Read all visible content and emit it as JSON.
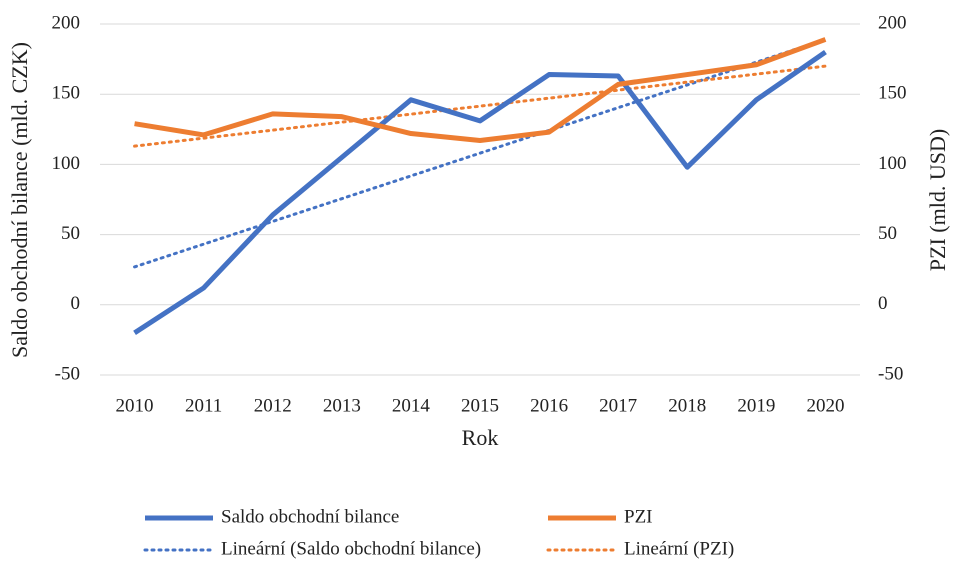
{
  "chart_data": {
    "type": "line",
    "x_label": "Rok",
    "y_label": "Saldo obchodní bilance (mld. CZK)",
    "y2_label": "PZI (mld. USD)",
    "categories": [
      "2010",
      "2011",
      "2012",
      "2013",
      "2014",
      "2015",
      "2016",
      "2017",
      "2018",
      "2019",
      "2020"
    ],
    "ylim": [
      -50,
      200
    ],
    "yticks": [
      -50,
      0,
      50,
      100,
      150,
      200
    ],
    "y2lim": [
      -50,
      200
    ],
    "y2ticks": [
      -50,
      0,
      50,
      100,
      150,
      200
    ],
    "grid": true,
    "legend": "bottom",
    "series": [
      {
        "name": "Saldo obchodní bilance",
        "color": "#4472c4",
        "style": "solid",
        "values": [
          -20,
          12,
          64,
          105,
          146,
          131,
          164,
          163,
          98,
          146,
          180
        ]
      },
      {
        "name": "PZI",
        "color": "#ed7d31",
        "style": "solid",
        "axis": "y2",
        "values": [
          129,
          121,
          136,
          134,
          122,
          117,
          123,
          157,
          164,
          171,
          189
        ]
      },
      {
        "name": "Lineární (Saldo obchodní bilance)",
        "color": "#4472c4",
        "style": "dotted",
        "values": [
          27,
          43.2,
          59.4,
          75.6,
          91.8,
          108,
          124.2,
          140.4,
          156.6,
          172.8,
          189
        ]
      },
      {
        "name": "Lineární (PZI)",
        "color": "#ed7d31",
        "style": "dotted",
        "axis": "y2",
        "values": [
          113,
          118.7,
          124.4,
          130.1,
          135.8,
          141.5,
          147.2,
          152.9,
          158.6,
          164.3,
          170
        ]
      }
    ]
  }
}
